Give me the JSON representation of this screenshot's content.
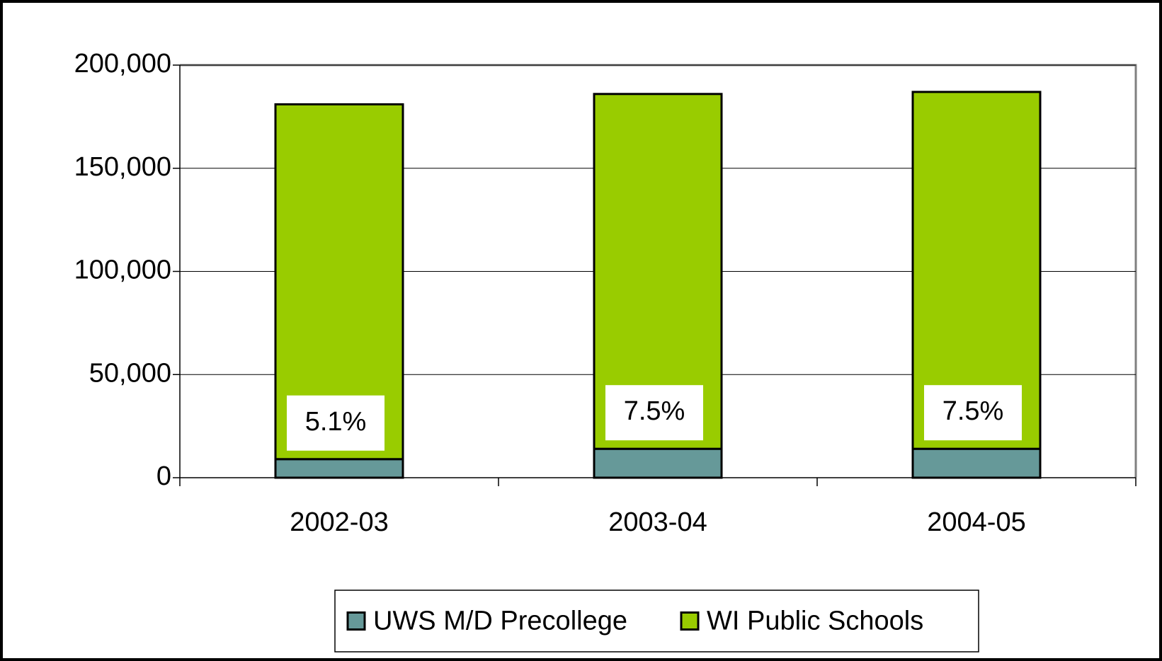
{
  "chart_data": {
    "type": "stacked_bar",
    "categories": [
      "2002-03",
      "2003-04",
      "2004-05"
    ],
    "series": [
      {
        "name": "UWS M/D Precollege",
        "color": "#669999",
        "values": [
          9000,
          14000,
          14000
        ]
      },
      {
        "name": "WI Public Schools",
        "color": "#99cc00",
        "values": [
          172000,
          172000,
          173000
        ]
      }
    ],
    "annotations": [
      "5.1%",
      "7.5%",
      "7.5%"
    ],
    "ylim": [
      0,
      200000
    ],
    "yticks": [
      0,
      {
        "value": 50000,
        "label": "50,000"
      },
      {
        "value": 100000,
        "label": "100,000"
      },
      {
        "value": 150000,
        "label": "150,000"
      },
      {
        "value": 200000,
        "label": "200,000"
      }
    ],
    "grid": true,
    "legend": "bottom"
  }
}
